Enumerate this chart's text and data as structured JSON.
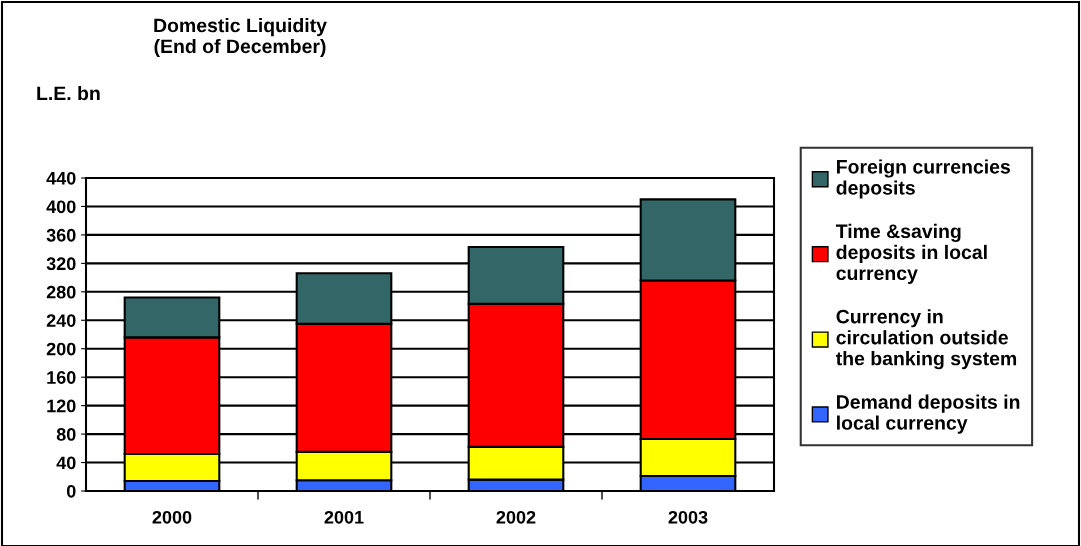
{
  "chart_data": {
    "type": "bar",
    "title": "Domestic Liquidity\n(End of December)",
    "ylabel": "L.E. bn",
    "stacked": true,
    "categories": [
      "2000",
      "2001",
      "2002",
      "2003"
    ],
    "series": [
      {
        "name": "Demand deposits in\nlocal currency",
        "color": "#3366ff",
        "values": [
          14,
          15,
          16,
          21
        ]
      },
      {
        "name": "Currency in\ncirculation outside\nthe banking system",
        "color": "#ffff00",
        "values": [
          38,
          40,
          46,
          52
        ]
      },
      {
        "name": "Time &saving\ndeposits in local\ncurrency",
        "color": "#ff0000",
        "values": [
          164,
          180,
          201,
          223
        ]
      },
      {
        "name": "Foreign currencies\ndeposits",
        "color": "#336666",
        "values": [
          56,
          71,
          80,
          114
        ]
      }
    ],
    "ylim": [
      0,
      440
    ],
    "yticks": [
      0,
      40,
      80,
      120,
      160,
      200,
      240,
      280,
      320,
      360,
      400,
      440
    ],
    "grid": "y",
    "legend": "right"
  }
}
